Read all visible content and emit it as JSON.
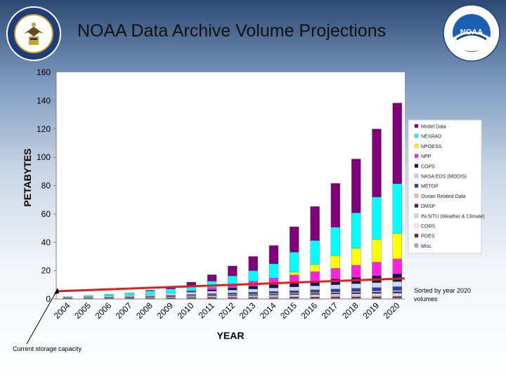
{
  "slide": {
    "title": "NOAA Data Archive Volume Projections",
    "sort_note": "Sorted by year 2020 volumes",
    "annotation": "Current storage capacity"
  },
  "logos": {
    "left": {
      "icon": "department-of-commerce-seal-icon",
      "text": "DEPARTMENT OF COMMERCE · UNITED STATES OF AMERICA"
    },
    "right": {
      "icon": "noaa-logo-icon",
      "text": "NATIONAL OCEANIC AND ATMOSPHERIC ADMINISTRATION · U.S. DEPARTMENT OF COMMERCE",
      "center": "NOAA"
    }
  },
  "colors": {
    "reference_line": "#e02020",
    "plot_bg": "#ffffff"
  },
  "chart_data": {
    "type": "bar",
    "stacked": true,
    "xlabel": "YEAR",
    "ylabel": "PETABYTES",
    "ylim": [
      0,
      160
    ],
    "yticks": [
      0,
      20,
      40,
      60,
      80,
      100,
      120,
      140,
      160
    ],
    "grid": false,
    "legend_position": "right",
    "categories": [
      "2004",
      "2005",
      "2006",
      "2007",
      "2008",
      "2009",
      "2010",
      "2011",
      "2012",
      "2013",
      "2014",
      "2015",
      "2016",
      "2017",
      "2018",
      "2019",
      "2020"
    ],
    "series": [
      {
        "name": "Misc.",
        "color": "#a6a6d8",
        "values": [
          0.2,
          0.2,
          0.2,
          0.3,
          0.3,
          0.3,
          0.4,
          0.4,
          0.5,
          0.5,
          0.5,
          0.6,
          0.6,
          0.7,
          0.7,
          0.7,
          0.8
        ]
      },
      {
        "name": "POES",
        "color": "#7a1a3a",
        "values": [
          0.2,
          0.3,
          0.3,
          0.4,
          0.4,
          0.5,
          0.5,
          0.6,
          0.6,
          0.7,
          0.7,
          0.8,
          0.8,
          0.9,
          0.9,
          1.0,
          1.0
        ]
      },
      {
        "name": "CORS",
        "color": "#ffffdd",
        "values": [
          0.1,
          0.1,
          0.2,
          0.2,
          0.3,
          0.3,
          0.3,
          0.4,
          0.4,
          0.4,
          0.5,
          0.5,
          0.6,
          0.6,
          0.6,
          0.7,
          0.7
        ]
      },
      {
        "name": "IN-SITU (Weather & Climate)",
        "color": "#bfe6f2",
        "values": [
          0.2,
          0.2,
          0.3,
          0.3,
          0.4,
          0.5,
          0.6,
          0.7,
          0.8,
          0.9,
          1.0,
          1.1,
          1.2,
          1.3,
          1.4,
          1.5,
          1.6
        ]
      },
      {
        "name": "DMSP",
        "color": "#5c1a66",
        "values": [
          0.1,
          0.2,
          0.2,
          0.3,
          0.3,
          0.4,
          0.4,
          0.5,
          0.5,
          0.6,
          0.7,
          0.7,
          0.8,
          0.9,
          1.0,
          1.0,
          1.1
        ]
      },
      {
        "name": "Ocean Related Data",
        "color": "#f2c0a8",
        "values": [
          0.1,
          0.1,
          0.2,
          0.2,
          0.3,
          0.3,
          0.4,
          0.4,
          0.5,
          0.5,
          0.6,
          0.6,
          0.7,
          0.7,
          0.8,
          0.8,
          0.9
        ]
      },
      {
        "name": "METOP",
        "color": "#2244aa",
        "values": [
          0,
          0,
          0,
          0,
          0.2,
          0.4,
          0.6,
          0.8,
          1.0,
          1.2,
          1.4,
          1.6,
          1.8,
          2.0,
          2.2,
          2.4,
          2.6
        ]
      },
      {
        "name": "NASA EOS (MODIS)",
        "color": "#c8d8ff",
        "values": [
          0.4,
          0.6,
          0.8,
          1.0,
          1.2,
          1.4,
          1.6,
          1.8,
          2.0,
          2.2,
          2.4,
          2.6,
          2.8,
          3.0,
          3.2,
          3.4,
          3.6
        ]
      },
      {
        "name": "COPS",
        "color": "#0a1a50",
        "values": [
          0,
          0,
          0,
          0,
          0,
          0,
          0.5,
          1.0,
          1.5,
          2.0,
          2.5,
          3.0,
          3.5,
          4.0,
          4.5,
          5.0,
          5.5
        ]
      },
      {
        "name": "NPP",
        "color": "#ff22dd",
        "values": [
          0,
          0,
          0,
          0,
          0,
          0,
          0.6,
          1.5,
          2.5,
          3.5,
          4.5,
          5.5,
          6.5,
          7.5,
          8.5,
          9.5,
          10.5
        ]
      },
      {
        "name": "NPOESS",
        "color": "#ffff00",
        "values": [
          0,
          0,
          0,
          0,
          0,
          0,
          0,
          0,
          0,
          0,
          0,
          2.0,
          5.0,
          9.0,
          12.0,
          16.0,
          18.0
        ]
      },
      {
        "name": "NEXRAD",
        "color": "#00ffff",
        "values": [
          0.4,
          0.8,
          1.2,
          1.7,
          2.3,
          3.0,
          3.5,
          4.5,
          6.0,
          7.5,
          10.0,
          14.0,
          17.0,
          20.0,
          25.0,
          30.0,
          35.0
        ]
      },
      {
        "name": "Model Data",
        "color": "#80007a",
        "values": [
          0,
          0,
          0,
          0,
          0.5,
          1.0,
          2.5,
          4.5,
          7.0,
          10.0,
          13.0,
          18.0,
          24.0,
          31.0,
          38.0,
          48.0,
          57.0
        ]
      }
    ],
    "legend_order": [
      "Model Data",
      "NEXRAD",
      "NPOESS",
      "NPP",
      "COPS",
      "NASA EOS (MODIS)",
      "METOP",
      "Ocean Related Data",
      "DMSP",
      "IN-SITU (Weather & Climate)",
      "CORS",
      "POES",
      "Misc."
    ],
    "reference_line": {
      "label": "Current storage capacity",
      "y_start": 5.5,
      "y_end": 14.5
    }
  }
}
